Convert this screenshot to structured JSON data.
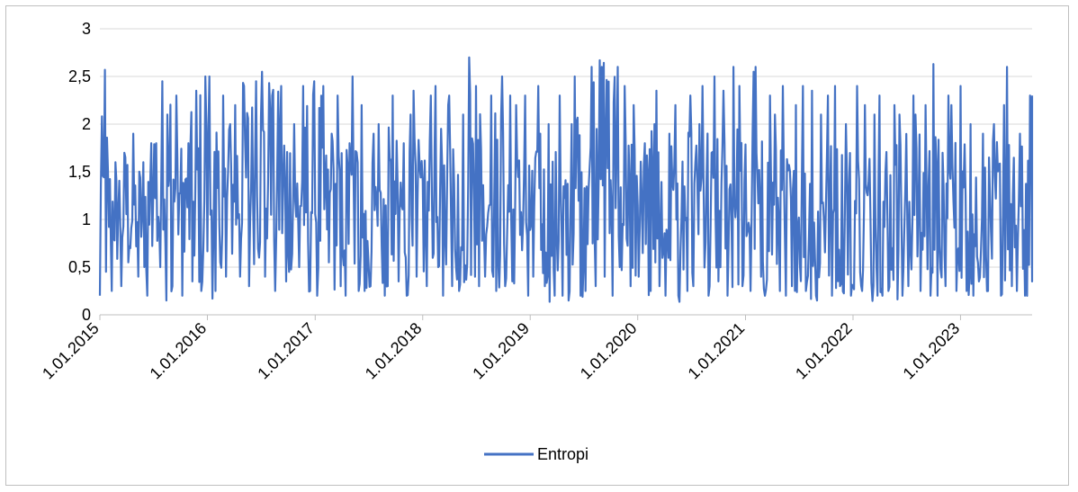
{
  "chart_data": {
    "type": "line",
    "title": "",
    "xlabel": "",
    "ylabel": "",
    "ylim": [
      0,
      3
    ],
    "y_ticks": [
      "0",
      "0,5",
      "1",
      "1,5",
      "2",
      "2,5",
      "3"
    ],
    "x_ticks": [
      "1.01.2015",
      "1.01.2016",
      "1.01.2017",
      "1.01.2018",
      "1.01.2019",
      "1.01.2020",
      "1.01.2021",
      "1.01.2022",
      "1.01.2023"
    ],
    "x_range": [
      "2015-01-01",
      "2023-09-01"
    ],
    "grid": "horizontal",
    "legend_position": "bottom",
    "series": [
      {
        "name": "Entropi",
        "color": "#4472C4",
        "x": [
          "2015-01-01",
          "2015-02-01",
          "2015-03-01",
          "2015-04-01",
          "2015-05-01",
          "2015-06-01",
          "2015-07-01",
          "2015-08-01",
          "2015-09-01",
          "2015-10-01",
          "2015-11-01",
          "2015-12-01",
          "2016-01-01",
          "2016-02-01",
          "2016-03-01",
          "2016-04-01",
          "2016-05-01",
          "2016-06-01",
          "2016-07-01",
          "2016-08-01",
          "2016-09-01",
          "2016-10-01",
          "2016-11-01",
          "2016-12-01",
          "2017-01-01",
          "2017-02-01",
          "2017-03-01",
          "2017-04-01",
          "2017-05-01",
          "2017-06-01",
          "2017-07-01",
          "2017-08-01",
          "2017-09-01",
          "2017-10-01",
          "2017-11-01",
          "2017-12-01",
          "2018-01-01",
          "2018-02-01",
          "2018-03-01",
          "2018-04-01",
          "2018-05-01",
          "2018-06-01",
          "2018-07-01",
          "2018-08-01",
          "2018-09-01",
          "2018-10-01",
          "2018-11-01",
          "2018-12-01",
          "2019-01-01",
          "2019-02-01",
          "2019-03-01",
          "2019-04-01",
          "2019-05-01",
          "2019-06-01",
          "2019-07-01",
          "2019-08-01",
          "2019-09-01",
          "2019-10-01",
          "2019-11-01",
          "2019-12-01",
          "2020-01-01",
          "2020-02-01",
          "2020-03-01",
          "2020-04-01",
          "2020-05-01",
          "2020-06-01",
          "2020-07-01",
          "2020-08-01",
          "2020-09-01",
          "2020-10-01",
          "2020-11-01",
          "2020-12-01",
          "2021-01-01",
          "2021-02-01",
          "2021-03-01",
          "2021-04-01",
          "2021-05-01",
          "2021-06-01",
          "2021-07-01",
          "2021-08-01",
          "2021-09-01",
          "2021-10-01",
          "2021-11-01",
          "2021-12-01",
          "2022-01-01",
          "2022-02-01",
          "2022-03-01",
          "2022-04-01",
          "2022-05-01",
          "2022-06-01",
          "2022-07-01",
          "2022-08-01",
          "2022-09-01",
          "2022-10-01",
          "2022-11-01",
          "2022-12-01",
          "2023-01-01",
          "2023-02-01",
          "2023-03-01",
          "2023-04-01",
          "2023-05-01",
          "2023-06-01",
          "2023-07-01",
          "2023-08-01",
          "2023-09-01"
        ],
        "low": [
          0.2,
          0.25,
          0.3,
          0.55,
          0.4,
          0.2,
          0.5,
          0.15,
          0.3,
          0.2,
          0.35,
          0.25,
          0.25,
          0.55,
          0.4,
          0.4,
          0.3,
          0.6,
          0.4,
          0.25,
          0.35,
          0.45,
          0.5,
          0.25,
          0.2,
          0.55,
          0.3,
          0.2,
          0.25,
          0.25,
          0.3,
          0.2,
          0.3,
          0.35,
          0.2,
          0.4,
          0.3,
          0.5,
          0.2,
          0.3,
          0.25,
          0.4,
          0.3,
          0.4,
          0.25,
          0.3,
          0.35,
          0.2,
          0.4,
          0.3,
          0.2,
          0.2,
          0.15,
          0.2,
          0.25,
          0.3,
          0.4,
          0.2,
          0.5,
          0.3,
          0.4,
          0.25,
          0.3,
          0.2,
          0.2,
          0.25,
          0.3,
          0.2,
          0.3,
          0.35,
          0.2,
          0.3,
          0.25,
          0.4,
          0.2,
          0.25,
          0.2,
          0.3,
          0.25,
          0.2,
          0.15,
          0.2,
          0.3,
          0.2,
          0.3,
          0.25,
          0.2,
          0.2,
          0.25,
          0.2,
          0.3,
          0.25,
          0.2,
          0.2,
          0.3,
          0.25,
          0.25,
          0.2,
          0.35,
          0.25,
          0.2,
          0.3,
          0.25,
          0.2,
          0.35
        ],
        "high": [
          2.57,
          1.6,
          1.7,
          1.9,
          1.6,
          1.8,
          1.8,
          2.45,
          2.3,
          1.8,
          2.35,
          2.5,
          2.5,
          2.3,
          2.0,
          2.2,
          2.4,
          2.45,
          2.55,
          2.3,
          2.4,
          2.0,
          2.4,
          2.45,
          2.4,
          1.9,
          2.3,
          1.8,
          2.5,
          2.2,
          1.9,
          2.0,
          2.3,
          1.8,
          2.1,
          2.35,
          2.3,
          2.4,
          2.2,
          2.3,
          2.1,
          2.7,
          2.4,
          2.3,
          2.5,
          2.3,
          2.2,
          2.3,
          2.4,
          1.9,
          2.0,
          2.3,
          2.0,
          2.5,
          2.6,
          2.67,
          2.6,
          2.6,
          2.4,
          2.2,
          1.8,
          2.0,
          2.35,
          1.9,
          2.2,
          2.3,
          2.0,
          2.4,
          2.5,
          2.35,
          2.6,
          2.4,
          2.55,
          2.6,
          2.3,
          2.1,
          2.4,
          2.2,
          2.4,
          2.35,
          2.1,
          2.3,
          2.4,
          2.0,
          2.4,
          2.2,
          2.1,
          2.3,
          2.2,
          2.1,
          2.3,
          2.1,
          2.2,
          2.63,
          2.3,
          2.2,
          2.4,
          2.0,
          1.9,
          2.0,
          2.2,
          2.6,
          1.9,
          2.3,
          2.3
        ],
        "mean": [
          1.1,
          1.1,
          1.1,
          1.15,
          1.05,
          1.1,
          1.3,
          1.4,
          1.3,
          1.25,
          1.2,
          1.3,
          1.25,
          1.2,
          1.25,
          1.3,
          1.4,
          1.45,
          1.45,
          1.35,
          1.3,
          1.25,
          1.25,
          1.3,
          1.25,
          1.15,
          1.1,
          1.1,
          1.1,
          1.1,
          1.1,
          1.05,
          1.1,
          1.1,
          1.05,
          1.1,
          1.1,
          1.1,
          1.05,
          1.1,
          1.15,
          1.4,
          1.4,
          1.3,
          1.2,
          1.1,
          1.05,
          1.0,
          1.05,
          1.0,
          0.95,
          0.95,
          0.95,
          1.3,
          1.6,
          1.75,
          1.7,
          1.55,
          1.25,
          1.15,
          1.05,
          1.05,
          1.05,
          1.0,
          1.0,
          1.05,
          1.1,
          1.05,
          1.05,
          1.1,
          1.15,
          1.15,
          1.2,
          1.1,
          1.05,
          1.0,
          0.95,
          0.95,
          0.95,
          1.0,
          1.0,
          1.0,
          1.05,
          1.0,
          1.05,
          1.0,
          1.0,
          1.05,
          1.05,
          1.05,
          1.1,
          1.05,
          1.05,
          1.05,
          1.1,
          1.05,
          1.05,
          1.0,
          1.0,
          1.0,
          1.05,
          1.05,
          1.0,
          1.1,
          1.1
        ]
      }
    ]
  }
}
